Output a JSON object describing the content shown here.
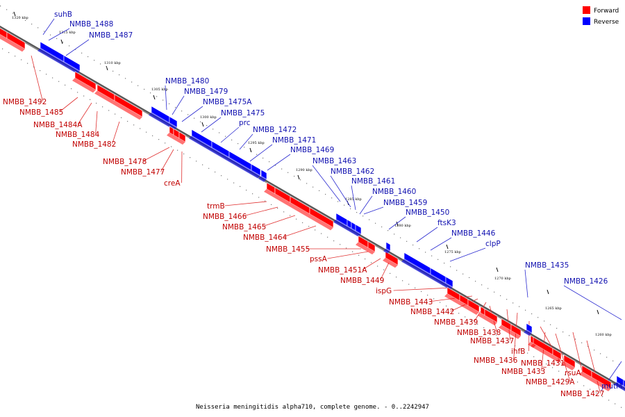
{
  "caption": "Neisseria meningitidis alpha710, complete genome. - 0..2242947",
  "legend": [
    {
      "label": "Forward",
      "color": "#ff0000"
    },
    {
      "label": "Reverse",
      "color": "#0000ff"
    }
  ],
  "colors": {
    "forward": "#ff0000",
    "reverse": "#0000ff",
    "forward_label": "#c00000",
    "reverse_label": "#1010b0"
  },
  "ticks": [
    "1320 kbp",
    "1315 kbp",
    "1310 kbp",
    "1305 kbp",
    "1300 kbp",
    "1295 kbp",
    "1290 kbp",
    "1285 kbp",
    "1280 kbp",
    "1275 kbp",
    "1270 kbp",
    "1265 kbp",
    "1260 kbp"
  ],
  "genes_forward": [
    "NMBB_1492",
    "NMBB_1485",
    "NMBB_1484A",
    "NMBB_1484",
    "NMBB_1482",
    "NMBB_1478",
    "NMBB_1477",
    "creA",
    "trmB",
    "NMBB_1466",
    "NMBB_1465",
    "NMBB_1464",
    "NMBB_1455",
    "pssA",
    "NMBB_1451A",
    "NMBB_1449",
    "ispG",
    "NMBB_1443",
    "NMBB_1442",
    "NMBB_1439",
    "NMBB_1438",
    "NMBB_1437",
    "NMBB_1436",
    "ihfB",
    "NMBB_1431",
    "NMBB_1433",
    "rsuA",
    "NMBB_1429A",
    "NMBB_1427"
  ],
  "genes_reverse": [
    "suhB",
    "NMBB_1488",
    "NMBB_1487",
    "NMBB_1480",
    "NMBB_1479",
    "NMBB_1475A",
    "NMBB_1475",
    "prc",
    "NMBB_1472",
    "NMBB_1471",
    "NMBB_1469",
    "NMBB_1463",
    "NMBB_1462",
    "NMBB_1461",
    "NMBB_1460",
    "NMBB_1459",
    "NMBB_1450",
    "ftsK3",
    "NMBB_1446",
    "clpP",
    "NMBB_1435",
    "NMBB_1426",
    "mutM"
  ]
}
